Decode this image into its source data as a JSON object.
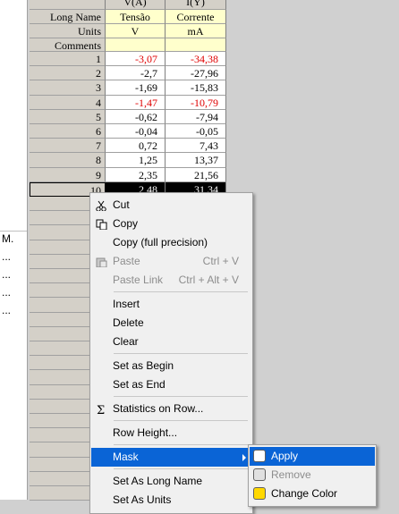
{
  "header_top": [
    "V(A)",
    "I(Y)"
  ],
  "row_labels": {
    "long_name": "Long Name",
    "units": "Units",
    "comments": "Comments"
  },
  "columns": [
    {
      "long_name": "Tensão",
      "units": "V"
    },
    {
      "long_name": "Corrente",
      "units": "mA"
    }
  ],
  "rows": [
    {
      "label": "1",
      "values": [
        "-3,07",
        "-34,38"
      ],
      "red": true
    },
    {
      "label": "2",
      "values": [
        "-2,7",
        "-27,96"
      ]
    },
    {
      "label": "3",
      "values": [
        "-1,69",
        "-15,83"
      ]
    },
    {
      "label": "4",
      "values": [
        "-1,47",
        "-10,79"
      ],
      "red": true
    },
    {
      "label": "5",
      "values": [
        "-0,62",
        "-7,94"
      ]
    },
    {
      "label": "6",
      "values": [
        "-0,04",
        "-0,05"
      ]
    },
    {
      "label": "7",
      "values": [
        "0,72",
        "7,43"
      ]
    },
    {
      "label": "8",
      "values": [
        "1,25",
        "13,37"
      ]
    },
    {
      "label": "9",
      "values": [
        "2,35",
        "21,56"
      ]
    },
    {
      "label": "10",
      "values": [
        "2,48",
        "31,34"
      ],
      "selected": true
    }
  ],
  "left_panel": [
    "M.",
    "...",
    "...",
    "...",
    "..."
  ],
  "menu": [
    [
      {
        "label": "Cut",
        "icon": "cut"
      },
      {
        "label": "Copy",
        "icon": "copy"
      },
      {
        "label": "Copy (full precision)"
      },
      {
        "label": "Paste",
        "shortcut": "Ctrl + V",
        "disabled": true,
        "icon": "paste"
      },
      {
        "label": "Paste Link",
        "shortcut": "Ctrl + Alt + V",
        "disabled": true
      }
    ],
    [
      {
        "label": "Insert"
      },
      {
        "label": "Delete"
      },
      {
        "label": "Clear"
      }
    ],
    [
      {
        "label": "Set as Begin"
      },
      {
        "label": "Set as End"
      }
    ],
    [
      {
        "label": "Statistics on Row...",
        "icon": "sigma"
      }
    ],
    [
      {
        "label": "Row Height..."
      }
    ],
    [
      {
        "label": "Mask",
        "highlighted": true,
        "submenu": true
      }
    ],
    [
      {
        "label": "Set As Long Name"
      },
      {
        "label": "Set As Units"
      }
    ]
  ],
  "submenu": [
    {
      "label": "Apply",
      "highlighted": true
    },
    {
      "label": "Remove",
      "disabled": true
    },
    {
      "label": "Change Color"
    }
  ]
}
